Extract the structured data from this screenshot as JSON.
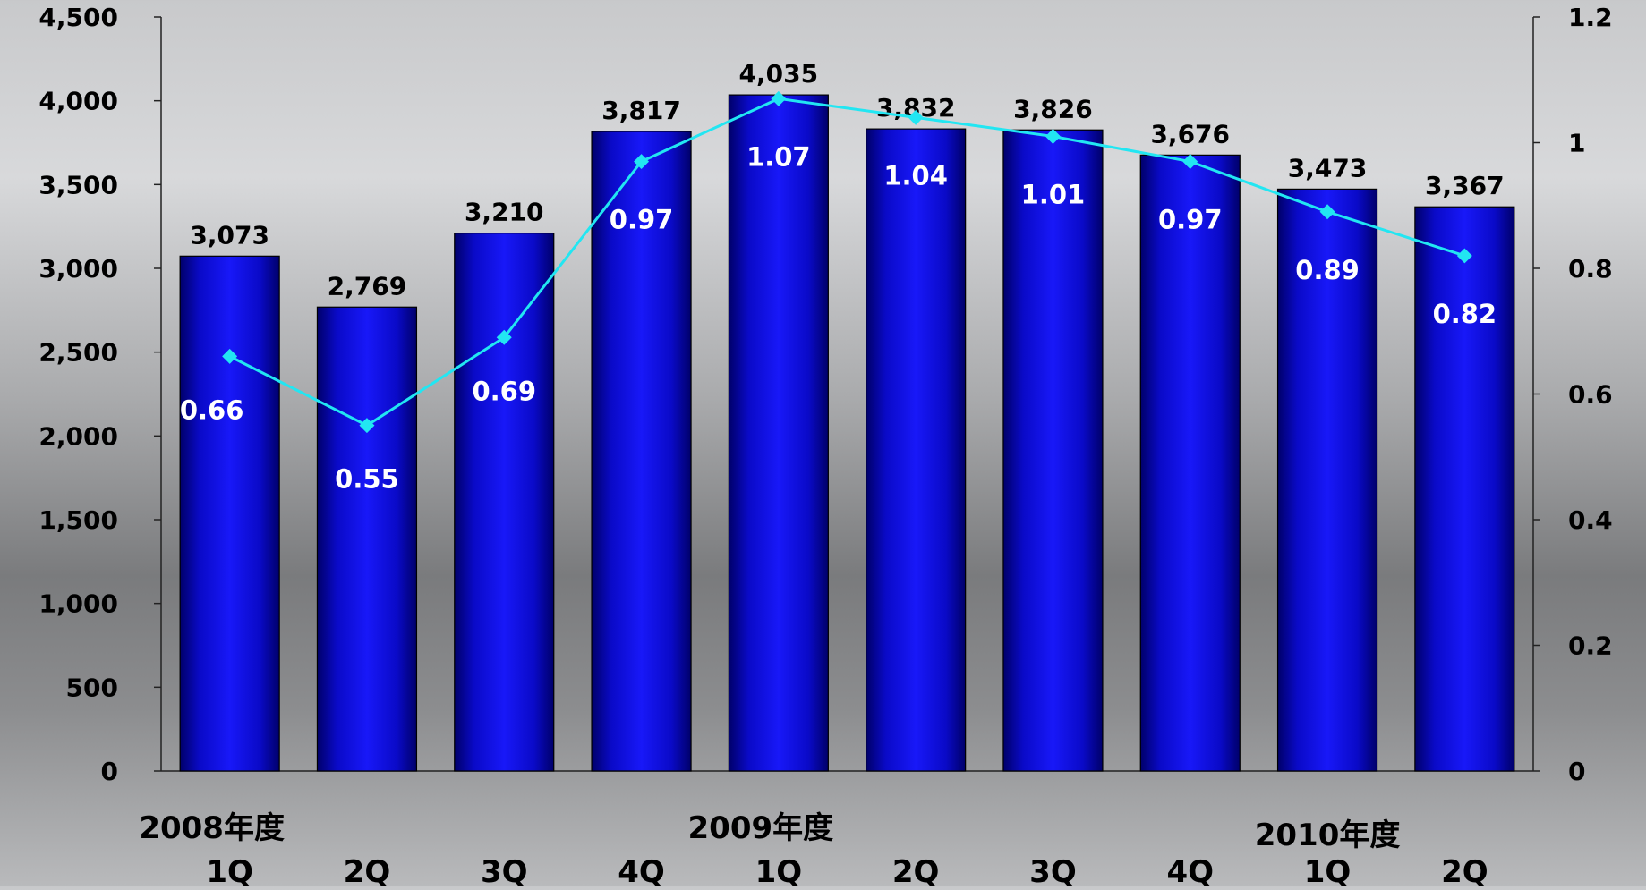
{
  "chart_data": {
    "type": "bar",
    "categories": [
      "1Q",
      "2Q",
      "3Q",
      "4Q",
      "1Q",
      "2Q",
      "3Q",
      "4Q",
      "1Q",
      "2Q"
    ],
    "groups": [
      {
        "label": "2008年度",
        "start_index": 0
      },
      {
        "label": "2009年度",
        "start_index": 4
      },
      {
        "label": "2010年度",
        "start_index": 8
      }
    ],
    "series": [
      {
        "type": "bar",
        "axis": "left",
        "values": [
          3073,
          2769,
          3210,
          3817,
          4035,
          3832,
          3826,
          3676,
          3473,
          3367
        ],
        "labels": [
          "3,073",
          "2,769",
          "3,210",
          "3,817",
          "4,035",
          "3,832",
          "3,826",
          "3,676",
          "3,473",
          "3,367"
        ],
        "color": "#1010e0"
      },
      {
        "type": "line",
        "axis": "right",
        "values": [
          0.66,
          0.55,
          0.69,
          0.97,
          1.07,
          1.04,
          1.01,
          0.97,
          0.89,
          0.82
        ],
        "labels": [
          "0.66",
          "0.55",
          "0.69",
          "0.97",
          "1.07",
          "1.04",
          "1.01",
          "0.97",
          "0.89",
          "0.82"
        ],
        "color": "#22e6f2"
      }
    ],
    "y_left": {
      "range": [
        0,
        4500
      ],
      "ticks": [
        "0",
        "500",
        "1,000",
        "1,500",
        "2,000",
        "2,500",
        "3,000",
        "3,500",
        "4,000",
        "4,500"
      ]
    },
    "y_right": {
      "range": [
        0,
        1.2
      ],
      "ticks": [
        "0",
        "0.2",
        "0.4",
        "0.6",
        "0.8",
        "1",
        "1.2"
      ]
    },
    "grid": false,
    "legend": "none"
  }
}
